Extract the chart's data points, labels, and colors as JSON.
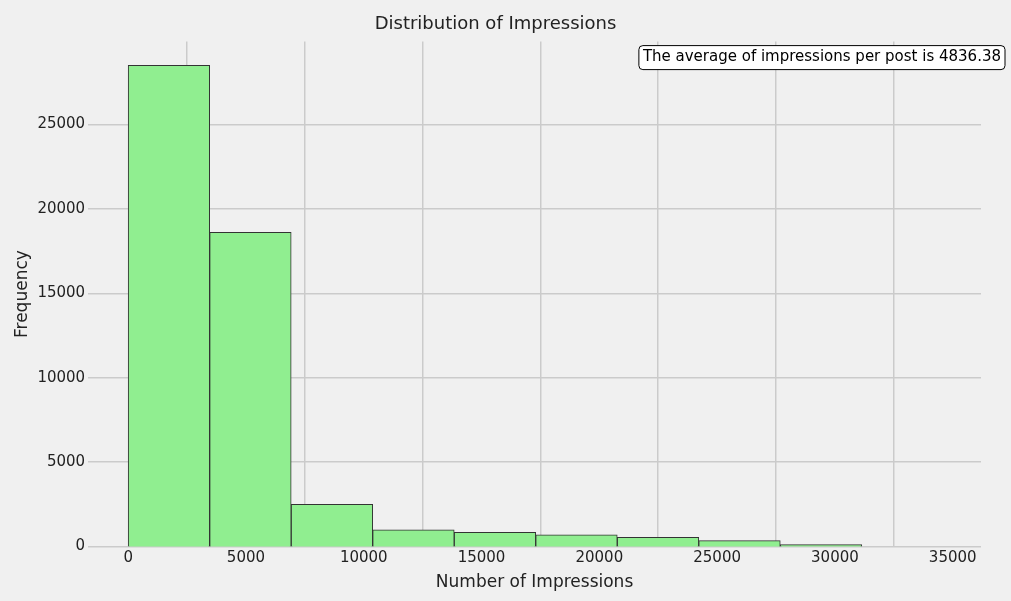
{
  "chart_data": {
    "type": "histogram",
    "title": "Distribution of Impressions",
    "xlabel": "Number of Impressions",
    "ylabel": "Frequency",
    "bins": [
      0,
      3460,
      6920,
      10380,
      13840,
      17300,
      20760,
      24220,
      27680,
      31140
    ],
    "values": [
      28500,
      18600,
      2500,
      1000,
      850,
      700,
      550,
      350,
      120
    ],
    "color": "#90ee90",
    "xlim": [
      -1700,
      36200
    ],
    "xticks": [
      0,
      5000,
      10000,
      15000,
      20000,
      25000,
      30000,
      35000
    ],
    "ylim": [
      0,
      29900
    ],
    "yticks": [
      0,
      5000,
      10000,
      15000,
      20000,
      25000
    ],
    "grid": true,
    "annotations": [
      "The average of impressions per post is 4836.38"
    ]
  }
}
